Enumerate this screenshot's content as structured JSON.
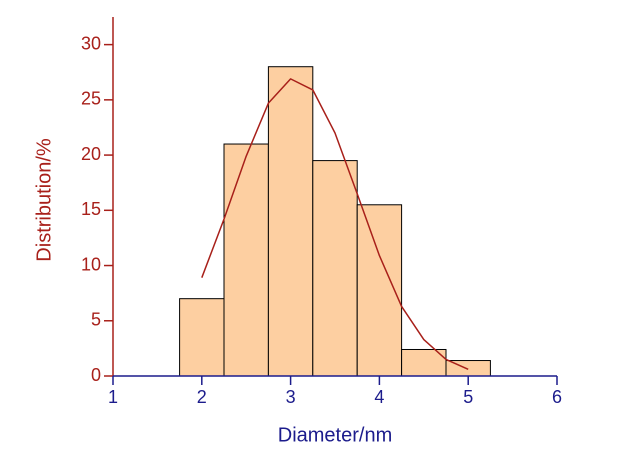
{
  "chart_data": {
    "type": "histogram",
    "x_label": "Diameter/nm",
    "y_label": "Distribution/%",
    "bins": [
      1.75,
      2.25,
      2.75,
      3.25,
      3.75,
      4.25,
      4.75,
      5.25
    ],
    "values": [
      7,
      21,
      28,
      19.5,
      15.5,
      2.4,
      1.4
    ],
    "color": "#fdcfa1",
    "edge_color": "#000000",
    "curve": {
      "color": "#a8201a",
      "x": [
        2,
        2.25,
        2.5,
        2.75,
        3,
        3.25,
        3.5,
        3.75,
        4,
        4.25,
        4.5,
        4.75,
        5
      ],
      "values": [
        8.9,
        14.2,
        19.9,
        24.7,
        26.9,
        25.9,
        22.0,
        16.5,
        10.9,
        6.3,
        3.3,
        1.5,
        0.6
      ]
    },
    "xlim": [
      1,
      6
    ],
    "xticks": [
      1,
      2,
      3,
      4,
      5,
      6
    ],
    "ylim": [
      0,
      32.5
    ],
    "yticks": [
      0,
      5,
      10,
      15,
      20,
      25,
      30
    ],
    "x_axis_color": "#1c1c8c",
    "y_axis_color": "#a8201a"
  }
}
